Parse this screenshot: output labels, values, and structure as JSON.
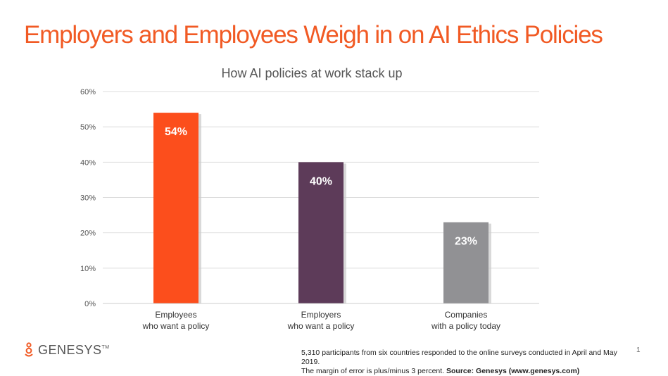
{
  "page": {
    "main_title": "Employers and Employees Weigh in on AI Ethics Policies",
    "page_number": "1"
  },
  "footer": {
    "logo_text": "GENESYS",
    "logo_tm": "TM",
    "note_line1": "5,310 participants from six countries responded to the online surveys conducted in April and May 2019.",
    "note_line2_prefix": "The margin of error is plus/minus 3 percent. ",
    "note_line2_source": "Source: Genesys (www.genesys.com)"
  },
  "colors": {
    "title": "#f15a24",
    "grid": "#dddddd",
    "axis_text": "#555555"
  },
  "chart_data": {
    "type": "bar",
    "title": "How AI policies at work stack up",
    "categories": [
      [
        "Employees",
        "who want a policy"
      ],
      [
        "Employers",
        "who want a policy"
      ],
      [
        "Companies",
        "with a policy today"
      ]
    ],
    "values": [
      54,
      40,
      23
    ],
    "value_labels": [
      "54%",
      "40%",
      "23%"
    ],
    "colors": [
      "#fc4e1c",
      "#5d3b59",
      "#919194"
    ],
    "ylim": [
      0,
      60
    ],
    "yticks": [
      0,
      10,
      20,
      30,
      40,
      50,
      60
    ],
    "ytick_labels": [
      "0%",
      "10%",
      "20%",
      "30%",
      "40%",
      "50%",
      "60%"
    ],
    "xlabel": "",
    "ylabel": "",
    "grid": true
  }
}
